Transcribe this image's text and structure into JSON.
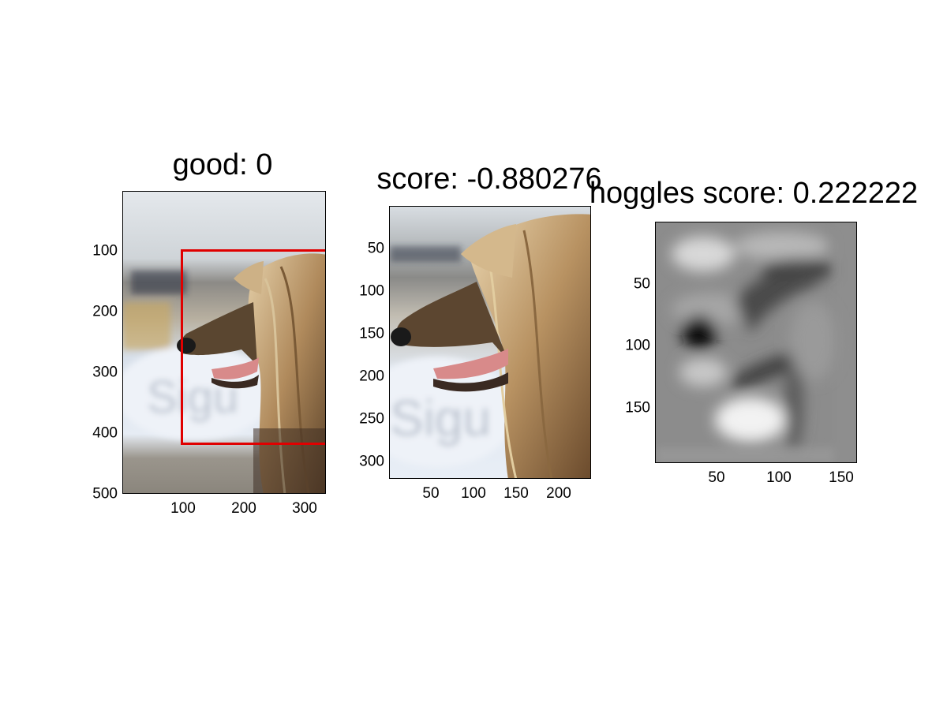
{
  "panels": [
    {
      "title": "good: 0",
      "xticks": [
        "100",
        "200",
        "300"
      ],
      "yticks": [
        "100",
        "200",
        "300",
        "400",
        "500"
      ],
      "image": "photo-dog-profile-full",
      "overlay": {
        "type": "rectangle",
        "color": "#e00000",
        "data_x": [
          97,
          335
        ],
        "data_y": [
          97,
          417
        ]
      }
    },
    {
      "title": "score: -0.880276",
      "xticks": [
        "50",
        "100",
        "150",
        "200"
      ],
      "yticks": [
        "50",
        "100",
        "150",
        "200",
        "250",
        "300"
      ],
      "image": "photo-dog-profile-crop"
    },
    {
      "title": "hoggles score: 0.222222",
      "xticks": [
        "50",
        "100",
        "150"
      ],
      "yticks": [
        "50",
        "100",
        "150"
      ],
      "image": "grayscale-hog-reconstruction"
    }
  ],
  "colors": {
    "box": "#e00000",
    "background": "#ffffff"
  }
}
